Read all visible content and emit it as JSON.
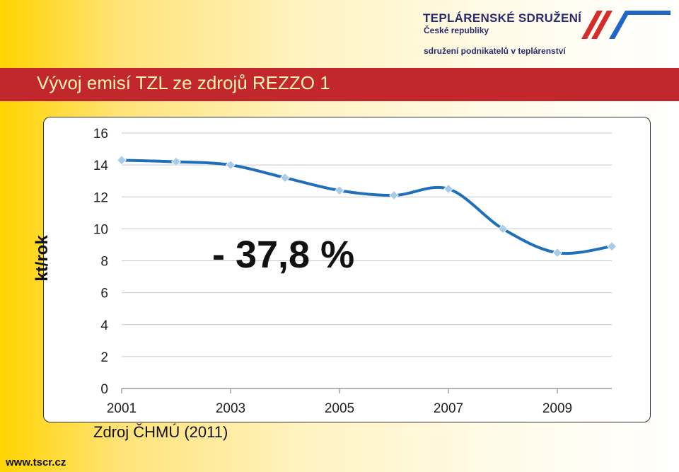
{
  "header": {
    "org_name": "TEPLÁRENSKÉ SDRUŽENÍ",
    "org_subtitle": "České republiky",
    "org_tagline": "sdružení podnikatelů v teplárenství",
    "stripe_colors": [
      "#d62b2b",
      "#1e66c8"
    ]
  },
  "title": "Vývoj emisí TZL ze zdrojů REZZO 1",
  "footer": {
    "source": "Zdroj ČHMÚ (2011)",
    "website": "www.tscr.cz"
  },
  "colors": {
    "title_bar": "#c1272d",
    "title_text": "#fff4b0",
    "line": "#1f6fb9",
    "marker": "#a8cbe8"
  },
  "chart_data": {
    "type": "line",
    "title": "",
    "xlabel": "",
    "ylabel": "kt/rok",
    "x": [
      2001,
      2002,
      2003,
      2004,
      2005,
      2006,
      2007,
      2008,
      2009,
      2010
    ],
    "series": [
      {
        "values": [
          14.3,
          14.2,
          14.0,
          13.2,
          12.4,
          12.1,
          12.5,
          10.0,
          8.5,
          8.9
        ]
      }
    ],
    "xticks": [
      "2001",
      "2003",
      "2005",
      "2007",
      "2009"
    ],
    "yticks": [
      "0",
      "2",
      "4",
      "6",
      "8",
      "10",
      "12",
      "14",
      "16"
    ],
    "ylim": [
      0,
      16
    ],
    "xlim": [
      2001,
      2010
    ],
    "grid": "horizontal",
    "smooth": true,
    "annotation": "- 37,8 %"
  }
}
